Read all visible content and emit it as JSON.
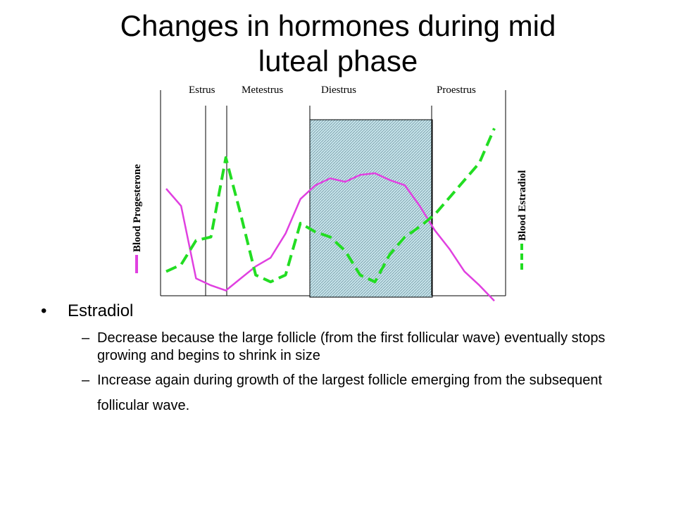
{
  "slide": {
    "title_line1": "Changes in hormones during mid",
    "title_line2": "luteal phase"
  },
  "bullets": {
    "main": "Estradiol",
    "bullet_char": "•",
    "dash_char": "–",
    "sub1": "Decrease because the large follicle (from the first follicular wave) eventually stops growing and begins to shrink in size",
    "sub2": "Increase again during growth of the largest follicle emerging from the subsequent follicular wave."
  },
  "chart_data": {
    "type": "line",
    "phases": [
      "Estrus",
      "Metestrus",
      "Diestrus",
      "Proestrus"
    ],
    "left_axis_label": "Blood Progesterone",
    "right_axis_label": "Blood Estradiol",
    "series": [
      {
        "name": "Blood Progesterone",
        "color": "#e040e0",
        "style": "solid",
        "values": [
          0.6,
          0.5,
          0.08,
          0.04,
          0.01,
          0.08,
          0.15,
          0.2,
          0.34,
          0.54,
          0.62,
          0.66,
          0.64,
          0.68,
          0.69,
          0.65,
          0.62,
          0.5,
          0.36,
          0.25,
          0.12,
          0.04,
          -0.05
        ]
      },
      {
        "name": "Blood Estradiol",
        "color": "#22dd22",
        "style": "dashed",
        "values": [
          0.12,
          0.16,
          0.3,
          0.32,
          0.78,
          0.45,
          0.1,
          0.06,
          0.1,
          0.4,
          0.35,
          0.32,
          0.24,
          0.1,
          0.06,
          0.22,
          0.32,
          0.38,
          0.45,
          0.55,
          0.65,
          0.75,
          0.95
        ]
      }
    ],
    "shaded_region": "Diestrus",
    "grid": false
  }
}
